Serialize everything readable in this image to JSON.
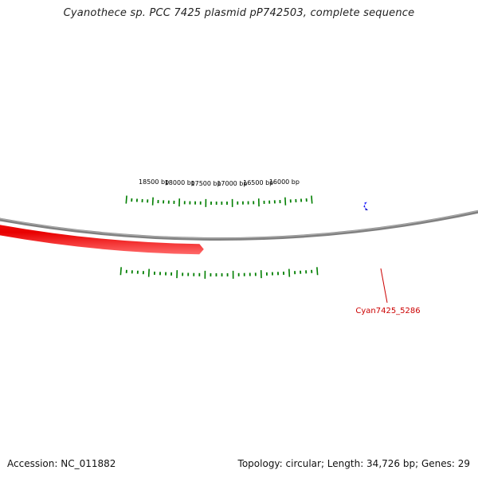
{
  "title": "Cyanothece sp. PCC 7425 plasmid pP742503, complete sequence",
  "footer": {
    "accession": "Accession: NC_011882",
    "summary": "Topology: circular; Length: 34,726 bp; Genes: 29"
  },
  "map": {
    "sequence_length_bp": 34726,
    "position_labels": [
      {
        "bp": 16000,
        "text": "16000 bp"
      },
      {
        "bp": 16500,
        "text": "16500 bp"
      },
      {
        "bp": 17000,
        "text": "17000 bp"
      },
      {
        "bp": 17500,
        "text": "17500 bp"
      },
      {
        "bp": 18000,
        "text": "18000 bp"
      },
      {
        "bp": 18500,
        "text": "18500 bp"
      }
    ],
    "features": [
      {
        "label": "",
        "strand": "forward",
        "color": "#0000ff"
      },
      {
        "label": "Cyan7425_5286",
        "strand": "reverse",
        "color": "#ff0000"
      }
    ]
  },
  "colors": {
    "backbone": "#808080",
    "ticks": "#007f00",
    "forward_gene": "#0000ff",
    "reverse_gene": "#ff0000",
    "gene_label": "#cc0000"
  }
}
